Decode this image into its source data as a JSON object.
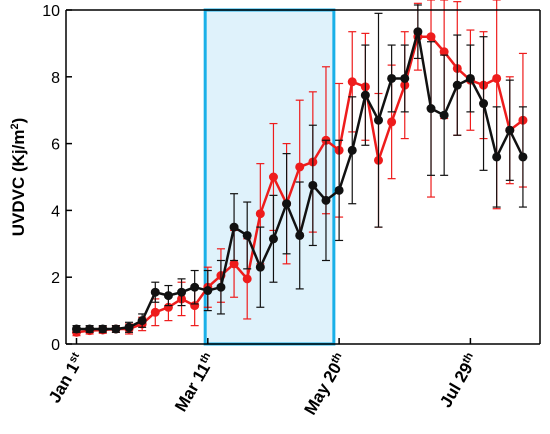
{
  "chart_data": {
    "type": "line",
    "title": "",
    "xlabel": "",
    "ylabel": "UVDVC (Kj/m²)",
    "ylabel_parts": {
      "main": "UVDVC (Kj/m",
      "sup": "2",
      "close": ")"
    },
    "ylim": [
      0,
      10
    ],
    "yticks": [
      0,
      2,
      4,
      6,
      8,
      10
    ],
    "grid": false,
    "x_tick_labels": [
      {
        "base": "Jan 1",
        "sup": "st",
        "at_index": 0
      },
      {
        "base": "Mar 11",
        "sup": "th",
        "at_index": 10
      },
      {
        "base": "May 20",
        "sup": "th",
        "at_index": 20
      },
      {
        "base": "Jul 29",
        "sup": "th",
        "at_index": 30
      }
    ],
    "highlight_region": {
      "x_start_index": 9.8,
      "x_end_index": 19.6,
      "fill": "#dff2fb",
      "stroke": "#1ab0e8"
    },
    "series": [
      {
        "color": "#ee1c1c",
        "x": [
          0,
          1,
          2,
          3,
          4,
          5,
          6,
          7,
          8,
          9,
          10,
          11,
          12,
          13,
          14,
          15,
          16,
          17,
          18,
          19,
          20,
          21,
          22,
          23,
          24,
          25,
          26,
          27,
          28,
          29,
          30,
          31,
          32,
          33,
          34
        ],
        "values": [
          0.35,
          0.4,
          0.42,
          0.45,
          0.45,
          0.6,
          0.95,
          1.1,
          1.35,
          1.15,
          1.7,
          2.05,
          2.4,
          1.95,
          3.9,
          5.0,
          4.2,
          5.3,
          5.45,
          6.1,
          5.8,
          7.85,
          7.7,
          5.5,
          6.65,
          7.75,
          9.2,
          9.2,
          8.75,
          8.25,
          7.9,
          7.75,
          7.95,
          6.4,
          6.7
        ],
        "err": [
          0.1,
          0.1,
          0.1,
          0.1,
          0.15,
          0.2,
          0.4,
          0.4,
          0.5,
          0.6,
          0.6,
          0.8,
          1.0,
          1.2,
          1.5,
          1.6,
          1.8,
          2.0,
          2.1,
          2.2,
          2.0,
          1.5,
          1.6,
          2.0,
          1.7,
          1.6,
          1.0,
          4.8,
          2.0,
          2.0,
          1.5,
          1.6,
          3.9,
          1.6,
          2.0
        ]
      },
      {
        "color": "#111111",
        "x": [
          0,
          1,
          2,
          3,
          4,
          5,
          6,
          7,
          8,
          9,
          10,
          11,
          12,
          13,
          14,
          15,
          16,
          17,
          18,
          19,
          20,
          21,
          22,
          23,
          24,
          25,
          26,
          27,
          28,
          29,
          30,
          31,
          32,
          33,
          34
        ],
        "values": [
          0.45,
          0.45,
          0.45,
          0.45,
          0.5,
          0.7,
          1.55,
          1.45,
          1.55,
          1.7,
          1.6,
          1.7,
          3.5,
          3.25,
          2.3,
          3.15,
          4.2,
          3.25,
          4.75,
          4.3,
          4.6,
          5.8,
          7.45,
          6.7,
          7.95,
          7.95,
          9.35,
          7.05,
          6.85,
          7.75,
          7.95,
          7.2,
          5.6,
          6.4,
          5.6
        ],
        "err": [
          0.1,
          0.1,
          0.1,
          0.1,
          0.15,
          0.2,
          0.3,
          0.3,
          0.4,
          0.5,
          0.6,
          0.8,
          1.0,
          1.0,
          1.2,
          1.3,
          1.5,
          1.6,
          1.8,
          1.8,
          1.5,
          1.6,
          1.5,
          3.2,
          1.0,
          1.0,
          0.8,
          2.0,
          1.8,
          1.5,
          1.0,
          2.0,
          1.5,
          1.5,
          1.5
        ]
      }
    ],
    "x_range": [
      -0.8,
      35.3
    ]
  }
}
